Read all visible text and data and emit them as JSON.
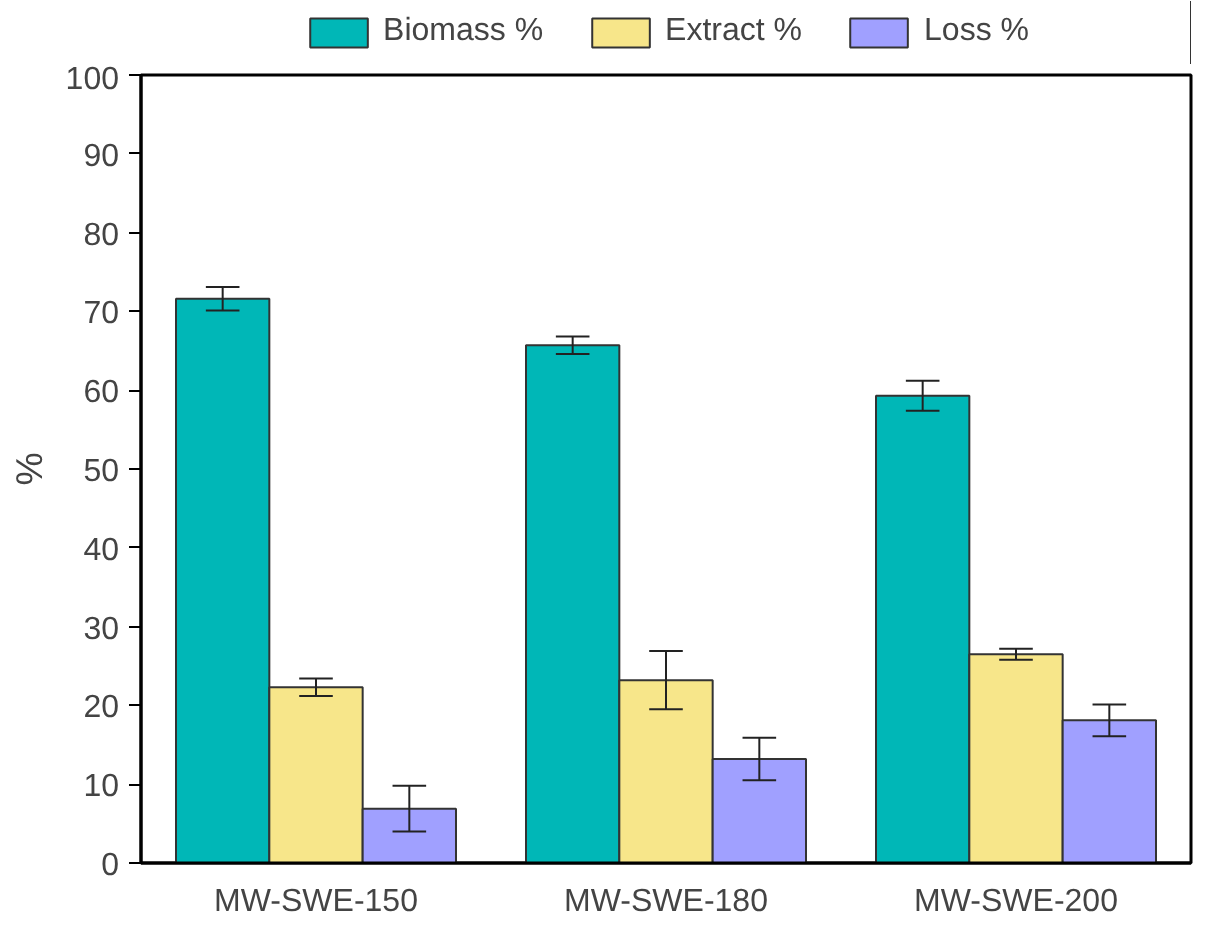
{
  "chart_data": {
    "type": "bar",
    "ylabel": "%",
    "categories": [
      "MW-SWE-150",
      "MW-SWE-180",
      "MW-SWE-200"
    ],
    "series": [
      {
        "name": "Biomass %",
        "color": "#00b7b7",
        "values": [
          71.6,
          65.7,
          59.3
        ],
        "errors": [
          1.5,
          1.1,
          1.9
        ]
      },
      {
        "name": "Extract %",
        "color": "#f7e68a",
        "values": [
          22.3,
          23.2,
          26.5
        ],
        "errors": [
          1.1,
          3.7,
          0.7
        ]
      },
      {
        "name": "Loss %",
        "color": "#a0a0ff",
        "values": [
          6.9,
          13.2,
          18.1
        ],
        "errors": [
          2.9,
          2.7,
          2.0
        ]
      }
    ],
    "ylim": [
      0,
      100
    ],
    "yticks": [
      0,
      10,
      20,
      30,
      40,
      50,
      60,
      70,
      80,
      90,
      100
    ],
    "grid": false,
    "legend": "top"
  }
}
